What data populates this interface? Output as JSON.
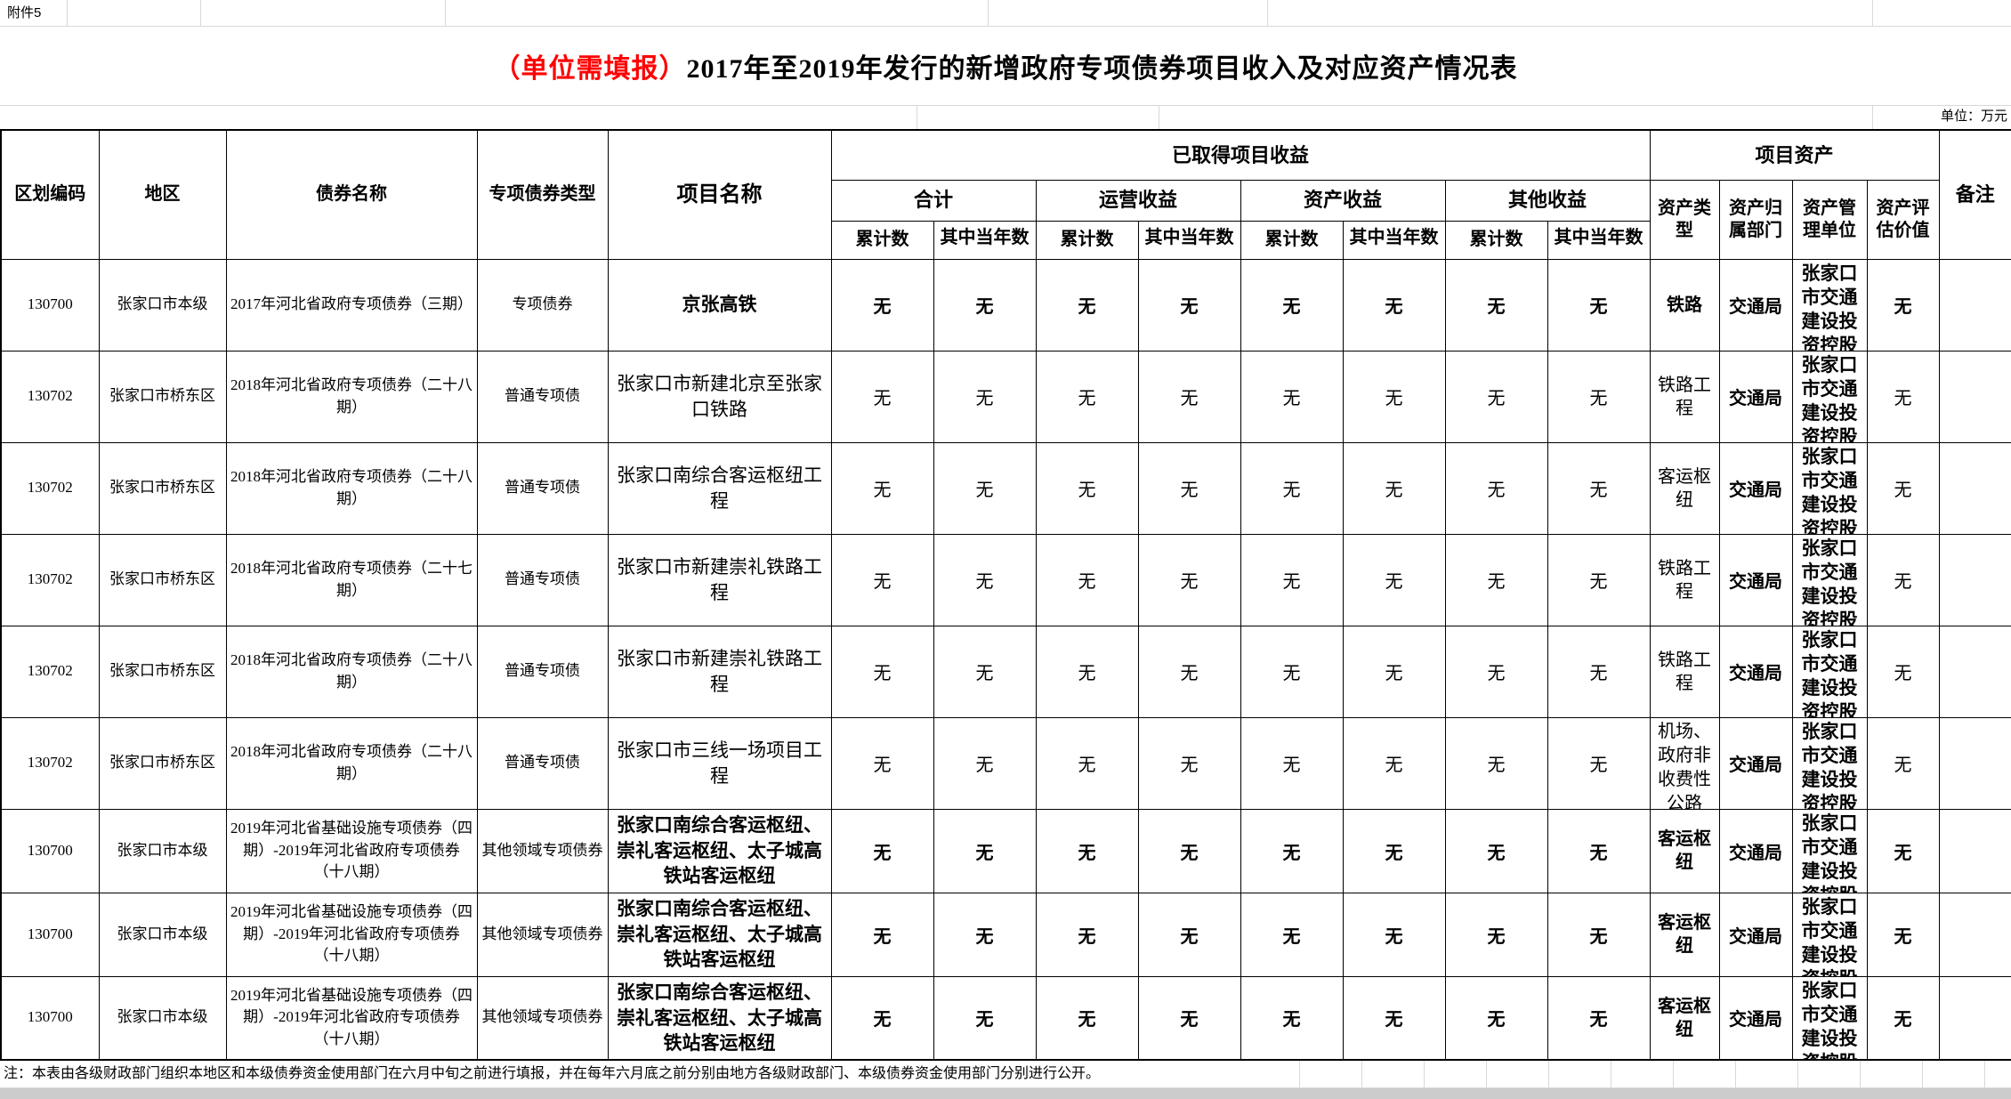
{
  "page": {
    "attachment_label": "附件5",
    "unit_label": "单位：万元",
    "note": "注：本表由各级财政部门组织本地区和本级债券资金使用部门在六月中旬之前进行填报，并在每年六月底之前分别由地方各级财政部门、本级债券资金使用部门分别进行公开。"
  },
  "title": {
    "red_part": "（单位需填报）",
    "black_part": "2017年至2019年发行的新增政府专项债券项目收入及对应资产情况表"
  },
  "colors": {
    "title_red": "#ff0000",
    "faint_grid": "#d9d9d9",
    "border": "#000000"
  },
  "table": {
    "headers": {
      "code": "区划编码",
      "region": "地区",
      "bond_name": "债券名称",
      "bond_type": "专项债券类型",
      "project_name": "项目名称",
      "income_group": "已取得项目收益",
      "income_subgroups": [
        "合计",
        "运营收益",
        "资产收益",
        "其他收益"
      ],
      "cumulative": "累计数",
      "current_year": "其中当年数",
      "asset_group": "项目资产",
      "asset_type": "资产类型",
      "asset_dept": "资产归属部门",
      "asset_mgmt": "资产管理单位",
      "asset_value": "资产评估价值",
      "remark": "备注"
    },
    "rows": [
      {
        "code": "130700",
        "region": "张家口市本级",
        "bond_name": "2017年河北省政府专项债券（三期）",
        "bond_type": "专项债券",
        "project_name": "京张高铁",
        "incomes": [
          "无",
          "无",
          "无",
          "无",
          "无",
          "无",
          "无",
          "无"
        ],
        "asset_type": "铁路",
        "asset_dept": "交通局",
        "asset_mgmt": "张家口市交通建设投资控股",
        "asset_value": "无",
        "remark": "",
        "bold": true
      },
      {
        "code": "130702",
        "region": "张家口市桥东区",
        "bond_name": "2018年河北省政府专项债券（二十八期）",
        "bond_type": "普通专项债",
        "project_name": "张家口市新建北京至张家口铁路",
        "incomes": [
          "无",
          "无",
          "无",
          "无",
          "无",
          "无",
          "无",
          "无"
        ],
        "asset_type": "铁路工程",
        "asset_dept": "交通局",
        "asset_mgmt": "张家口市交通建设投资控股",
        "asset_value": "无",
        "remark": "",
        "bold": false
      },
      {
        "code": "130702",
        "region": "张家口市桥东区",
        "bond_name": "2018年河北省政府专项债券（二十八期）",
        "bond_type": "普通专项债",
        "project_name": "张家口南综合客运枢纽工程",
        "incomes": [
          "无",
          "无",
          "无",
          "无",
          "无",
          "无",
          "无",
          "无"
        ],
        "asset_type": "客运枢纽",
        "asset_dept": "交通局",
        "asset_mgmt": "张家口市交通建设投资控股",
        "asset_value": "无",
        "remark": "",
        "bold": false
      },
      {
        "code": "130702",
        "region": "张家口市桥东区",
        "bond_name": "2018年河北省政府专项债券（二十七期）",
        "bond_type": "普通专项债",
        "project_name": "张家口市新建崇礼铁路工程",
        "incomes": [
          "无",
          "无",
          "无",
          "无",
          "无",
          "无",
          "无",
          "无"
        ],
        "asset_type": "铁路工程",
        "asset_dept": "交通局",
        "asset_mgmt": "张家口市交通建设投资控股",
        "asset_value": "无",
        "remark": "",
        "bold": false
      },
      {
        "code": "130702",
        "region": "张家口市桥东区",
        "bond_name": "2018年河北省政府专项债券（二十八期）",
        "bond_type": "普通专项债",
        "project_name": "张家口市新建崇礼铁路工程",
        "incomes": [
          "无",
          "无",
          "无",
          "无",
          "无",
          "无",
          "无",
          "无"
        ],
        "asset_type": "铁路工程",
        "asset_dept": "交通局",
        "asset_mgmt": "张家口市交通建设投资控股",
        "asset_value": "无",
        "remark": "",
        "bold": false
      },
      {
        "code": "130702",
        "region": "张家口市桥东区",
        "bond_name": "2018年河北省政府专项债券（二十八期）",
        "bond_type": "普通专项债",
        "project_name": "张家口市三线一场项目工程",
        "incomes": [
          "无",
          "无",
          "无",
          "无",
          "无",
          "无",
          "无",
          "无"
        ],
        "asset_type": "机场、政府非收费性公路",
        "asset_dept": "交通局",
        "asset_mgmt": "张家口市交通建设投资控股",
        "asset_value": "无",
        "remark": "",
        "bold": false
      },
      {
        "code": "130700",
        "region": "张家口市本级",
        "bond_name": "2019年河北省基础设施专项债券（四期）-2019年河北省政府专项债券（十八期）",
        "bond_type": "其他领域专项债券",
        "project_name": "张家口南综合客运枢纽、崇礼客运枢纽、太子城高铁站客运枢纽",
        "incomes": [
          "无",
          "无",
          "无",
          "无",
          "无",
          "无",
          "无",
          "无"
        ],
        "asset_type": "客运枢纽",
        "asset_dept": "交通局",
        "asset_mgmt": "张家口市交通建设投资控股",
        "asset_value": "无",
        "remark": "",
        "bold": true
      },
      {
        "code": "130700",
        "region": "张家口市本级",
        "bond_name": "2019年河北省基础设施专项债券（四期）-2019年河北省政府专项债券（十八期）",
        "bond_type": "其他领域专项债券",
        "project_name": "张家口南综合客运枢纽、崇礼客运枢纽、太子城高铁站客运枢纽",
        "incomes": [
          "无",
          "无",
          "无",
          "无",
          "无",
          "无",
          "无",
          "无"
        ],
        "asset_type": "客运枢纽",
        "asset_dept": "交通局",
        "asset_mgmt": "张家口市交通建设投资控股",
        "asset_value": "无",
        "remark": "",
        "bold": true
      },
      {
        "code": "130700",
        "region": "张家口市本级",
        "bond_name": "2019年河北省基础设施专项债券（四期）-2019年河北省政府专项债券（十八期）",
        "bond_type": "其他领域专项债券",
        "project_name": "张家口南综合客运枢纽、崇礼客运枢纽、太子城高铁站客运枢纽",
        "incomes": [
          "无",
          "无",
          "无",
          "无",
          "无",
          "无",
          "无",
          "无"
        ],
        "asset_type": "客运枢纽",
        "asset_dept": "交通局",
        "asset_mgmt": "张家口市交通建设投资控股",
        "asset_value": "无",
        "remark": "",
        "bold": true
      }
    ]
  }
}
